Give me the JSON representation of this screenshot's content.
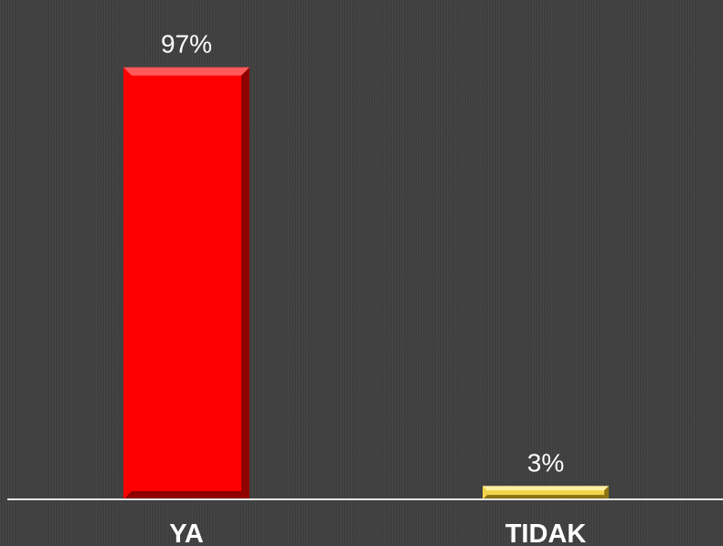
{
  "chart_data": {
    "type": "bar",
    "categories": [
      "YA",
      "TIDAK"
    ],
    "values": [
      97,
      3
    ],
    "data_labels": [
      "97%",
      "3%"
    ],
    "ylim": [
      0,
      100
    ],
    "grid": false,
    "legend": "none",
    "colors": [
      "#ff0000",
      "#f2d44a"
    ],
    "shade_colors": [
      "#8f0000",
      "#8a7212"
    ],
    "highlight_colors": [
      "#ff5a5a",
      "#fff0a0"
    ],
    "background": "#404040",
    "axis_color": "#e6e6e6"
  }
}
